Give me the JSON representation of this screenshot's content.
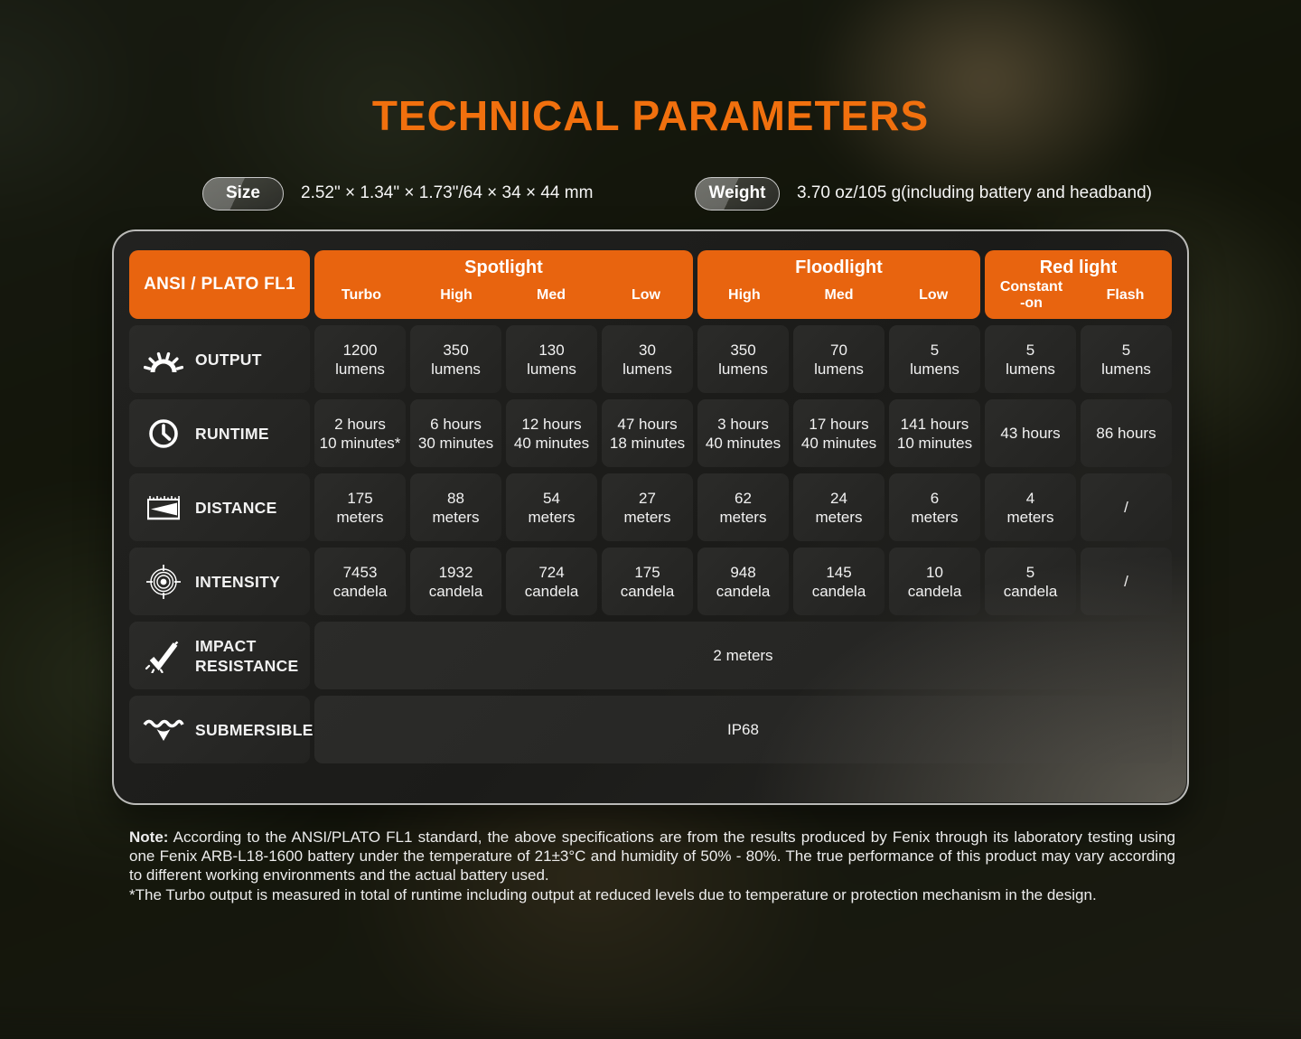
{
  "title": "TECHNICAL PARAMETERS",
  "specs": {
    "size_label": "Size",
    "size_value": "2.52\" × 1.34\" × 1.73\"/64 × 34 × 44 mm",
    "weight_label": "Weight",
    "weight_value": "3.70 oz/105 g(including battery and headband)"
  },
  "colors": {
    "accent_orange": "#E8640F",
    "title_orange": "#F1700E"
  },
  "table": {
    "corner_label": "ANSI / PLATO FL1",
    "groups": [
      {
        "label": "Spotlight",
        "modes": [
          "Turbo",
          "High",
          "Med",
          "Low"
        ]
      },
      {
        "label": "Floodlight",
        "modes": [
          "High",
          "Med",
          "Low"
        ]
      },
      {
        "label": "Red light",
        "modes": [
          "Constant\n-on",
          "Flash"
        ]
      }
    ],
    "rows": [
      {
        "label": "OUTPUT",
        "icon": "output-icon",
        "values": [
          "1200\nlumens",
          "350\nlumens",
          "130\nlumens",
          "30\nlumens",
          "350\nlumens",
          "70\nlumens",
          "5\nlumens",
          "5\nlumens",
          "5\nlumens"
        ]
      },
      {
        "label": "RUNTIME",
        "icon": "runtime-icon",
        "values": [
          "2 hours\n10 minutes*",
          "6 hours\n30 minutes",
          "12 hours\n40 minutes",
          "47 hours\n18 minutes",
          "3 hours\n40 minutes",
          "17 hours\n40 minutes",
          "141 hours\n10 minutes",
          "43 hours",
          "86 hours"
        ]
      },
      {
        "label": "DISTANCE",
        "icon": "distance-icon",
        "values": [
          "175\nmeters",
          "88\nmeters",
          "54\nmeters",
          "27\nmeters",
          "62\nmeters",
          "24\nmeters",
          "6\nmeters",
          "4\nmeters",
          "/"
        ]
      },
      {
        "label": "INTENSITY",
        "icon": "intensity-icon",
        "values": [
          "7453\ncandela",
          "1932\ncandela",
          "724\ncandela",
          "175\ncandela",
          "948\ncandela",
          "145\ncandela",
          "10\ncandela",
          "5\ncandela",
          "/"
        ]
      },
      {
        "label": "IMPACT RESISTANCE",
        "icon": "impact-resistance-icon",
        "span_value": "2 meters"
      },
      {
        "label": "SUBMERSIBLE",
        "icon": "submersible-icon",
        "span_value": "IP68"
      }
    ]
  },
  "note": {
    "label": "Note:",
    "body": "According to the ANSI/PLATO FL1 standard, the above specifications are from the results produced by Fenix through its laboratory testing using one Fenix ARB-L18-1600 battery under the temperature of 21±3°C and humidity of 50% - 80%. The true performance of this product may vary according to different working environments and the actual battery used.",
    "footnote": "*The Turbo output is measured in total of runtime including output at reduced levels due to temperature or protection mechanism in the design."
  }
}
